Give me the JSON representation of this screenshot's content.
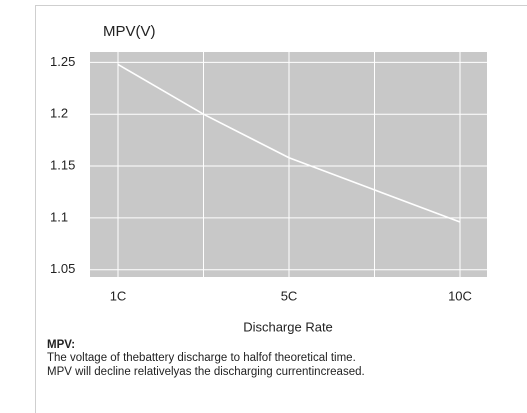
{
  "chart_data": {
    "type": "line",
    "y_label": "MPV(V)",
    "x_label": "Discharge Rate",
    "categories": [
      "1C",
      null,
      "5C",
      null,
      "10C"
    ],
    "series": [
      {
        "name": "MPV",
        "color": "#ffffff",
        "values": [
          1.248,
          1.2,
          1.158,
          1.127,
          1.096
        ]
      }
    ],
    "ylim": [
      1.043,
      1.26
    ],
    "yticks": [
      1.05,
      1.1,
      1.15,
      1.2,
      1.25
    ],
    "grid": true,
    "plot_color": "#c8c8c8",
    "note_title": "MPV:",
    "notes": [
      "The voltage of thebattery discharge to halfof theoretical time.",
      "MPV will decline relativelyas the discharging currentincreased."
    ]
  }
}
